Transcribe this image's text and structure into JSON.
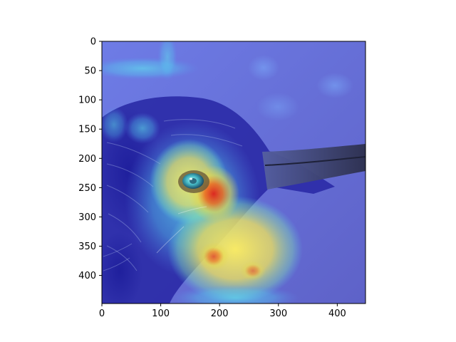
{
  "figure": {
    "image_description_icon": "heatmap-overlay-bird-head-icon",
    "overlay_colormap": "jet",
    "x_axis": {
      "range": [
        0,
        448
      ],
      "ticks": [
        "0",
        "100",
        "200",
        "300",
        "400"
      ],
      "tick_values": [
        0,
        100,
        200,
        300,
        400
      ]
    },
    "y_axis": {
      "range": [
        0,
        448
      ],
      "ticks": [
        "0",
        "50",
        "100",
        "150",
        "200",
        "250",
        "300",
        "350",
        "400"
      ],
      "tick_values": [
        0,
        50,
        100,
        150,
        200,
        250,
        300,
        350,
        400
      ]
    },
    "colors": {
      "background_blue": "#6a72d8",
      "hot_red": "#d8312a",
      "warm_yellow": "#f2e45a",
      "cyan": "#4fd6e8",
      "beak_dark": "#3a3f5e"
    }
  }
}
